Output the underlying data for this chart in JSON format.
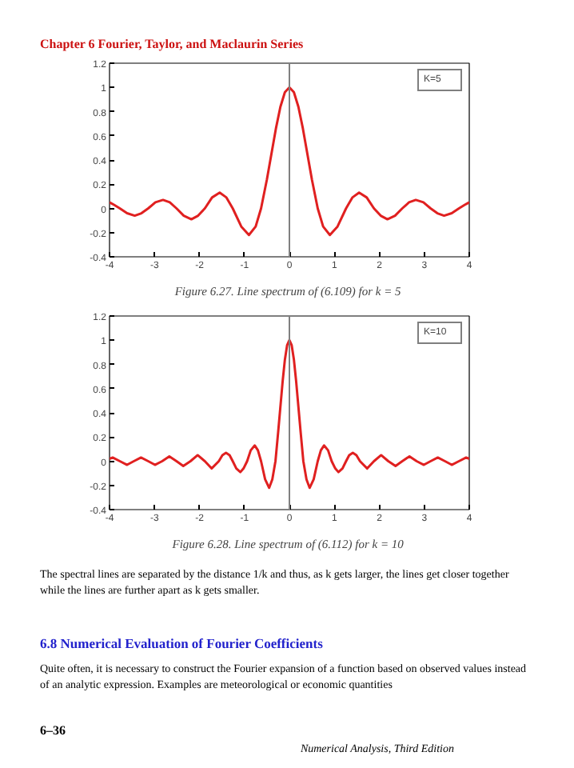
{
  "chart_data": [
    {
      "type": "line",
      "title": "Figure 6.27.  Line spectrum of (6.109) for k = 5",
      "annotations": [
        "Chapter 6  Fourier, Taylor, and Maclaurin Series"
      ],
      "xlim": [
        -4,
        4
      ],
      "xticks": [
        -4,
        -3,
        -2,
        -1,
        0,
        1,
        2,
        3,
        4
      ],
      "ylim": [
        -0.4,
        1.2
      ],
      "yticks": [
        -0.4,
        -0.2,
        0,
        0.2,
        0.4,
        0.6,
        0.8,
        1,
        1.2
      ],
      "legend": "top right",
      "ref_lines": [
        {
          "axis": "x",
          "value": 0,
          "color": "#808080"
        }
      ],
      "series": [
        {
          "name": "K=5",
          "color": "#e02020",
          "x": [
            -4,
            -3.9,
            -3.77,
            -3.61,
            -3.44,
            -3.29,
            -3.14,
            -2.98,
            -2.81,
            -2.66,
            -2.51,
            -2.35,
            -2.18,
            -2.03,
            -1.88,
            -1.72,
            -1.55,
            -1.4,
            -1.26,
            -1.07,
            -0.9,
            -0.75,
            -0.63,
            -0.5,
            -0.4,
            -0.3,
            -0.2,
            -0.1,
            0,
            0.1,
            0.2,
            0.3,
            0.4,
            0.5,
            0.63,
            0.75,
            0.9,
            1.07,
            1.26,
            1.4,
            1.55,
            1.72,
            1.88,
            2.03,
            2.18,
            2.35,
            2.51,
            2.66,
            2.81,
            2.98,
            3.14,
            3.29,
            3.44,
            3.61,
            3.77,
            3.9,
            4
          ],
          "values": [
            0.05,
            0.03,
            0,
            -0.04,
            -0.06,
            -0.04,
            0,
            0.05,
            0.07,
            0.05,
            0,
            -0.06,
            -0.09,
            -0.06,
            0,
            0.09,
            0.13,
            0.09,
            0,
            -0.15,
            -0.22,
            -0.15,
            0,
            0.24,
            0.45,
            0.66,
            0.84,
            0.96,
            1,
            0.96,
            0.84,
            0.66,
            0.45,
            0.24,
            0,
            -0.15,
            -0.22,
            -0.15,
            0,
            0.09,
            0.13,
            0.09,
            0,
            -0.06,
            -0.09,
            -0.06,
            0,
            0.05,
            0.07,
            0.05,
            0,
            -0.04,
            -0.06,
            -0.04,
            0,
            0.03,
            0.05
          ]
        }
      ]
    },
    {
      "type": "line",
      "title": "Figure 6.28.  Line spectrum of (6.112) for k = 10",
      "annotations": [
        "The spectral lines are separated by the distance 1/k and thus, as k gets larger, the lines get closer together while the lines are further apart as k gets smaller.",
        "6.8 Numerical Evaluation of Fourier Coefficients",
        "Quite often, it is necessary to construct the Fourier expansion of a function based on observed values instead of an analytic expression. Examples are meteorological or economic quantities",
        "6–36",
        "Numerical Analysis, Third Edition"
      ],
      "xlim": [
        -4,
        4
      ],
      "xticks": [
        -4,
        -3,
        -2,
        -1,
        0,
        1,
        2,
        3,
        4
      ],
      "ylim": [
        -0.4,
        1.2
      ],
      "yticks": [
        -0.4,
        -0.2,
        0,
        0.2,
        0.4,
        0.6,
        0.8,
        1,
        1.2
      ],
      "legend": "top right",
      "ref_lines": [
        {
          "axis": "x",
          "value": 0,
          "color": "#808080"
        }
      ],
      "series": [
        {
          "name": "K=10",
          "color": "#e02020",
          "x": [
            -4,
            -3.93,
            -3.77,
            -3.61,
            -3.46,
            -3.3,
            -3.14,
            -2.99,
            -2.83,
            -2.67,
            -2.51,
            -2.36,
            -2.2,
            -2.04,
            -1.88,
            -1.73,
            -1.57,
            -1.49,
            -1.41,
            -1.33,
            -1.26,
            -1.18,
            -1.09,
            -1.02,
            -0.94,
            -0.86,
            -0.77,
            -0.7,
            -0.63,
            -0.54,
            -0.45,
            -0.38,
            -0.31,
            -0.25,
            -0.2,
            -0.15,
            -0.1,
            -0.05,
            0,
            0.05,
            0.1,
            0.15,
            0.2,
            0.25,
            0.31,
            0.38,
            0.45,
            0.54,
            0.63,
            0.7,
            0.77,
            0.86,
            0.94,
            1.02,
            1.09,
            1.18,
            1.26,
            1.33,
            1.41,
            1.49,
            1.57,
            1.73,
            1.88,
            2.04,
            2.2,
            2.36,
            2.51,
            2.67,
            2.83,
            2.99,
            3.14,
            3.3,
            3.46,
            3.61,
            3.77,
            3.93,
            4
          ],
          "values": [
            0.02,
            0.03,
            0,
            -0.03,
            0,
            0.03,
            0,
            -0.03,
            0,
            0.04,
            0,
            -0.04,
            0,
            0.05,
            0,
            -0.06,
            0,
            0.05,
            0.07,
            0.05,
            0,
            -0.06,
            -0.09,
            -0.06,
            0,
            0.09,
            0.13,
            0.09,
            0,
            -0.15,
            -0.22,
            -0.15,
            0,
            0.24,
            0.45,
            0.66,
            0.84,
            0.96,
            1,
            0.96,
            0.84,
            0.66,
            0.45,
            0.24,
            0,
            -0.15,
            -0.22,
            -0.15,
            0,
            0.09,
            0.13,
            0.09,
            0,
            -0.06,
            -0.09,
            -0.06,
            0,
            0.05,
            0.07,
            0.05,
            0,
            -0.06,
            0,
            0.05,
            0,
            -0.04,
            0,
            0.04,
            0,
            -0.03,
            0,
            0.03,
            0,
            -0.03,
            0,
            0.03,
            0.02
          ]
        }
      ]
    }
  ]
}
